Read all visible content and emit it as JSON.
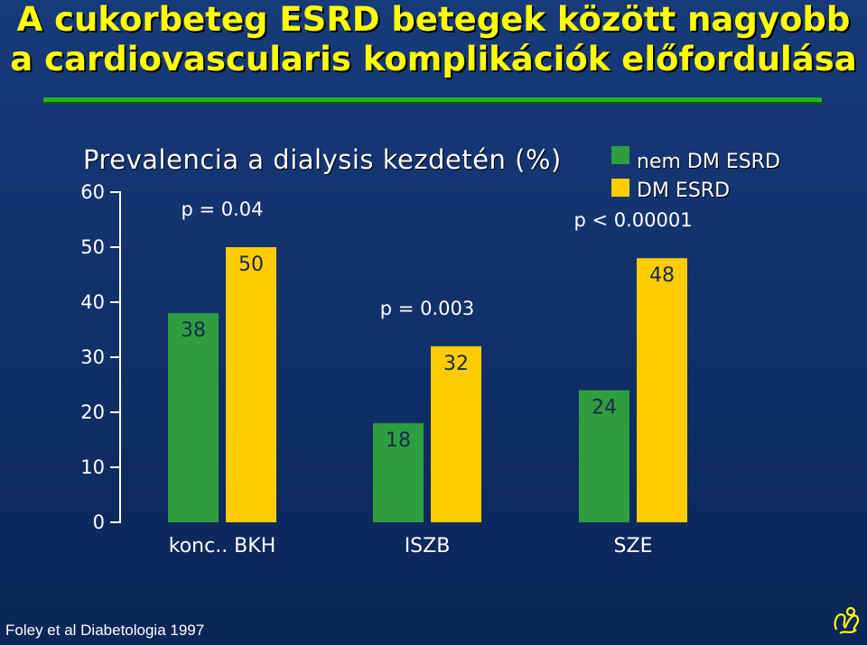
{
  "title": {
    "line1": "A cukorbeteg ESRD betegek között nagyobb",
    "line2": "a cardiovascularis komplikációk előfordulása"
  },
  "colors": {
    "title": "#ffff00",
    "background": "#0f3068",
    "rule": "#1fb51f",
    "series_green": "#2e9e3f",
    "series_yellow": "#ffcc00",
    "text_dark": "#1a2a4a"
  },
  "reference": "Foley et al Diabetologia 1997",
  "chart_data": {
    "type": "bar",
    "title": "Prevalencia a dialysis kezdetén (%)",
    "categories": [
      "konc.. BKH",
      "ISZB",
      "SZE"
    ],
    "series": [
      {
        "name": "nem DM ESRD",
        "color": "#2e9e3f",
        "values": [
          38,
          18,
          24
        ]
      },
      {
        "name": "DM ESRD",
        "color": "#ffcc00",
        "values": [
          50,
          32,
          48
        ]
      }
    ],
    "p_values": [
      "p = 0.04",
      "p = 0.003",
      "p < 0.00001"
    ],
    "yticks": [
      0,
      10,
      20,
      30,
      40,
      50,
      60
    ],
    "ylim": [
      0,
      60
    ],
    "legend": "top-right",
    "grid": false
  }
}
